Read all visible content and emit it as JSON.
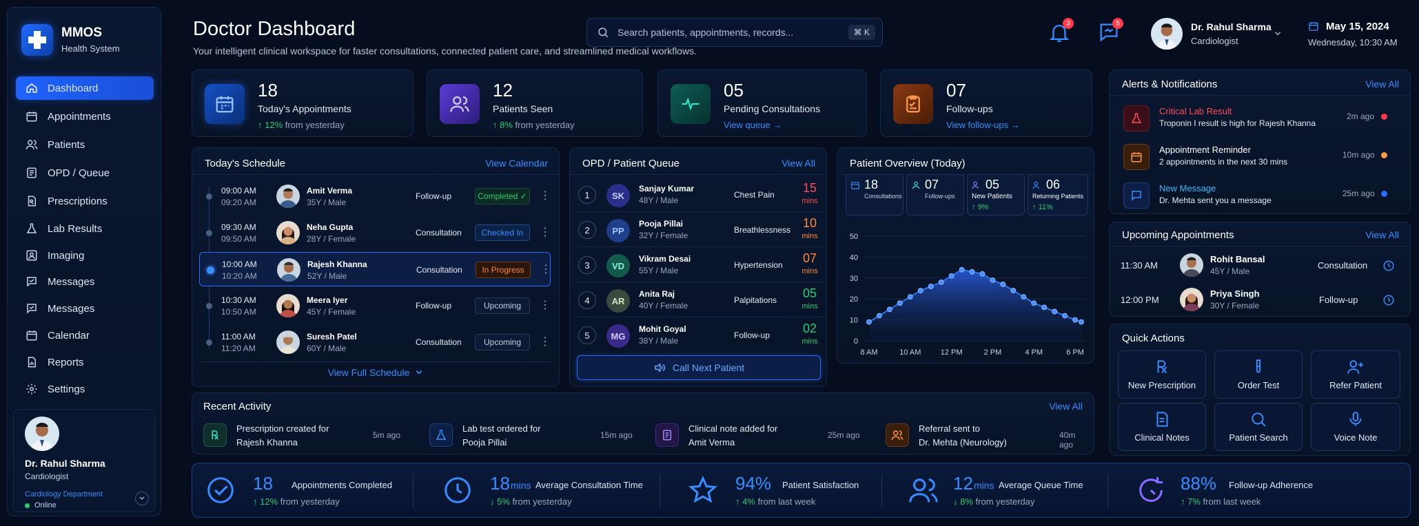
{
  "app": {
    "name": "MMOS",
    "subtitle": "Health System"
  },
  "nav": [
    {
      "label": "Dashboard",
      "icon": "home-icon"
    },
    {
      "label": "Appointments",
      "icon": "calendar-icon"
    },
    {
      "label": "Patients",
      "icon": "users-icon"
    },
    {
      "label": "OPD / Queue",
      "icon": "queue-icon"
    },
    {
      "label": "Prescriptions",
      "icon": "prescription-icon"
    },
    {
      "label": "Lab Results",
      "icon": "flask-icon"
    },
    {
      "label": "Imaging",
      "icon": "image-icon"
    },
    {
      "label": "Messages",
      "icon": "message-icon"
    },
    {
      "label": "Messages",
      "icon": "message-icon"
    },
    {
      "label": "Calendar",
      "icon": "calendar-icon"
    },
    {
      "label": "Reports",
      "icon": "report-icon"
    },
    {
      "label": "Settings",
      "icon": "gear-icon"
    }
  ],
  "profile": {
    "name": "Dr. Rahul Sharma",
    "role": "Cardiologist",
    "department": "Cardiology Department",
    "status": "Online"
  },
  "header": {
    "title": "Doctor Dashboard",
    "subtitle": "Your intelligent clinical workspace for faster consultations, connected patient care, and streamlined medical workflows."
  },
  "search": {
    "placeholder": "Search patients, appointments, records...",
    "shortcut": "⌘ K"
  },
  "notifications": {
    "bell_count": "3",
    "message_count": "5"
  },
  "user": {
    "name": "Dr. Rahul Sharma",
    "role": "Cardiologist"
  },
  "date": {
    "day": "May 15, 2024",
    "time": "Wednesday, 10:30 AM"
  },
  "stats": [
    {
      "value": "18",
      "label": "Today's Appointments",
      "delta": "12%",
      "sub": "from yesterday"
    },
    {
      "value": "12",
      "label": "Patients Seen",
      "delta": "8%",
      "sub": "from yesterday"
    },
    {
      "value": "05",
      "label": "Pending Consultations",
      "link": "View queue →"
    },
    {
      "value": "07",
      "label": "Follow-ups",
      "link": "View follow-ups →"
    }
  ],
  "schedule": {
    "title": "Today's Schedule",
    "link": "View Calendar",
    "footer": "View Full Schedule",
    "rows": [
      {
        "start": "09:00 AM",
        "end": "09:20 AM",
        "name": "Amit Verma",
        "info": "35Y / Male",
        "type": "Follow-up",
        "status": "Completed ✓"
      },
      {
        "start": "09:30 AM",
        "end": "09:50 AM",
        "name": "Neha Gupta",
        "info": "28Y / Female",
        "type": "Consultation",
        "status": "Checked In"
      },
      {
        "start": "10:00 AM",
        "end": "10:20 AM",
        "name": "Rajesh Khanna",
        "info": "52Y / Male",
        "type": "Consultation",
        "status": "In Progress"
      },
      {
        "start": "10:30 AM",
        "end": "10:50 AM",
        "name": "Meera Iyer",
        "info": "45Y / Female",
        "type": "Follow-up",
        "status": "Upcoming"
      },
      {
        "start": "11:00 AM",
        "end": "11:20 AM",
        "name": "Suresh Patel",
        "info": "60Y / Male",
        "type": "Consultation",
        "status": "Upcoming"
      }
    ]
  },
  "queue": {
    "title": "OPD / Patient Queue",
    "link": "View All",
    "button": "Call Next Patient",
    "rows": [
      {
        "num": "1",
        "initials": "SK",
        "name": "Sanjay Kumar",
        "info": "48Y / Male",
        "reason": "Chest Pain",
        "wait": "15",
        "unit": "mins",
        "color": "#ff4d57",
        "bg": "#2a2f8a"
      },
      {
        "num": "2",
        "initials": "PP",
        "name": "Pooja Pillai",
        "info": "32Y / Female",
        "reason": "Breathlessness",
        "wait": "10",
        "unit": "mins",
        "color": "#ff8a3d",
        "bg": "#1f3f8a"
      },
      {
        "num": "3",
        "initials": "VD",
        "name": "Vikram Desai",
        "info": "55Y / Male",
        "reason": "Hypertension",
        "wait": "07",
        "unit": "mins",
        "color": "#ff8a3d",
        "bg": "#135a4c"
      },
      {
        "num": "4",
        "initials": "AR",
        "name": "Anita Raj",
        "info": "40Y / Female",
        "reason": "Palpitations",
        "wait": "05",
        "unit": "mins",
        "color": "#2ecc71",
        "bg": "#3b4a3f"
      },
      {
        "num": "5",
        "initials": "MG",
        "name": "Mohit Goyal",
        "info": "38Y / Male",
        "reason": "Follow-up",
        "wait": "02",
        "unit": "mins",
        "color": "#2ecc71",
        "bg": "#3a2a8a"
      }
    ]
  },
  "overview": {
    "title": "Patient Overview (Today)",
    "cards": [
      {
        "value": "18",
        "label": "Consultations"
      },
      {
        "value": "07",
        "label": "Follow-ups"
      },
      {
        "value": "05",
        "label": "New Patients",
        "delta": "9%"
      },
      {
        "value": "06",
        "label": "Returning Patients",
        "delta": "11%"
      }
    ]
  },
  "chart_data": {
    "type": "area",
    "x": [
      8,
      8.5,
      9,
      9.5,
      10,
      10.5,
      11,
      11.5,
      12,
      12.5,
      13,
      13.5,
      14,
      14.5,
      15,
      15.5,
      16,
      16.5,
      17,
      17.5,
      18,
      18.3
    ],
    "y": [
      9,
      12,
      15,
      18,
      21,
      24,
      26,
      28,
      31,
      34,
      33,
      32,
      29,
      27,
      24,
      21,
      18,
      16,
      14,
      12,
      10,
      9
    ],
    "xticks": [
      "8 AM",
      "10 AM",
      "12 PM",
      "2 PM",
      "4 PM",
      "6 PM"
    ],
    "yticks": [
      "0",
      "10",
      "20",
      "30",
      "40",
      "50"
    ],
    "xlim": [
      7.8,
      18.5
    ],
    "ylim": [
      0,
      50
    ],
    "color": "#2f7bff"
  },
  "activity": {
    "title": "Recent Activity",
    "link": "View All",
    "items": [
      {
        "text1": "Prescription created for",
        "text2": "Rajesh Khanna",
        "time": "5m ago"
      },
      {
        "text1": "Lab test ordered for",
        "text2": "Pooja Pillai",
        "time": "15m ago"
      },
      {
        "text1": "Clinical note added for",
        "text2": "Amit Verma",
        "time": "25m ago"
      },
      {
        "text1": "Referral sent to",
        "text2": "Dr. Mehta (Neurology)",
        "time": "40m ago"
      }
    ]
  },
  "kpis": [
    {
      "value": "18",
      "unit": "",
      "label": "Appointments Completed",
      "delta": "12%",
      "sub": "from yesterday"
    },
    {
      "value": "18",
      "unit": "mins",
      "label": "Average Consultation Time",
      "delta": "5%",
      "sub": "from yesterday"
    },
    {
      "value": "94%",
      "unit": "",
      "label": "Patient Satisfaction",
      "delta": "4%",
      "sub": "from last week"
    },
    {
      "value": "12",
      "unit": "mins",
      "label": "Average Queue Time",
      "delta": "8%",
      "sub": "from yesterday"
    },
    {
      "value": "88%",
      "unit": "",
      "label": "Follow-up Adherence",
      "delta": "7%",
      "sub": "from last week"
    }
  ],
  "alerts": {
    "title": "Alerts & Notifications",
    "link": "View All",
    "items": [
      {
        "title": "Critical Lab Result",
        "text": "Troponin I result is high for Rajesh Khanna",
        "time": "2m ago"
      },
      {
        "title": "Appointment Reminder",
        "text": "2 appointments in the next 30 mins",
        "time": "10m ago"
      },
      {
        "title": "New Message",
        "text": "Dr. Mehta sent you a message",
        "time": "25m ago"
      }
    ]
  },
  "upcoming": {
    "title": "Upcoming Appointments",
    "link": "View All",
    "items": [
      {
        "time": "11:30 AM",
        "name": "Rohit Bansal",
        "info": "45Y / Male",
        "type": "Consultation"
      },
      {
        "time": "12:00 PM",
        "name": "Priya Singh",
        "info": "30Y / Female",
        "type": "Follow-up"
      }
    ]
  },
  "quick": {
    "title": "Quick Actions",
    "items": [
      "New Prescription",
      "Order Test",
      "Refer Patient",
      "Clinical Notes",
      "Patient Search",
      "Voice Note"
    ]
  }
}
